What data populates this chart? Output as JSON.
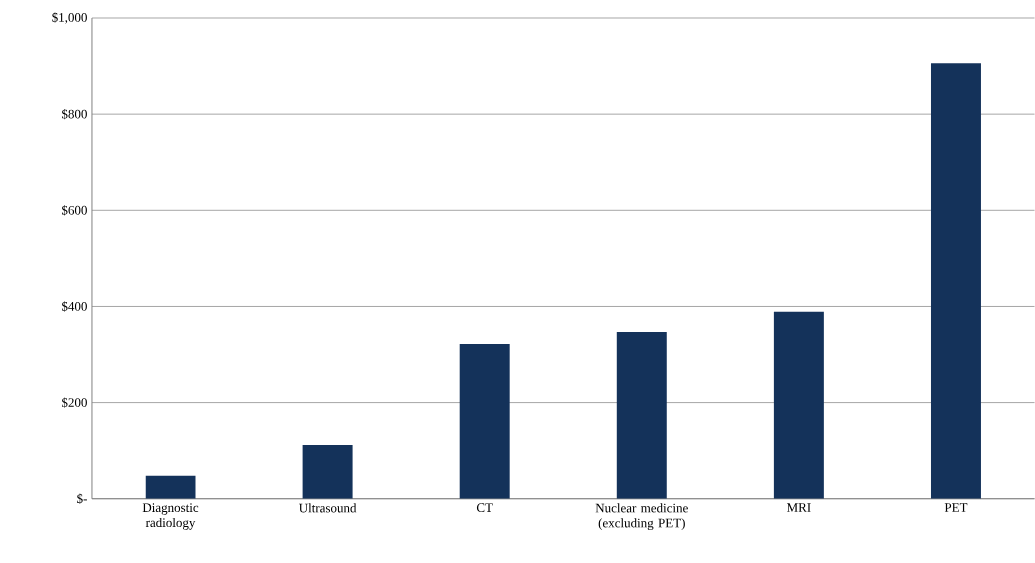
{
  "chart_data": {
    "type": "bar",
    "categories": [
      "Diagnostic radiology",
      "Ultrasound",
      "CT",
      "Nuclear medicine (excluding PET)",
      "MRI",
      "PET"
    ],
    "values": [
      48,
      112,
      322,
      347,
      389,
      906
    ],
    "color": "#14325a",
    "ylim": [
      0,
      1000
    ],
    "yticks": [
      {
        "value": 0,
        "label": "$-"
      },
      {
        "value": 200,
        "label": "$200"
      },
      {
        "value": 400,
        "label": "$400"
      },
      {
        "value": 600,
        "label": "$600"
      },
      {
        "value": 800,
        "label": "$800"
      },
      {
        "value": 1000,
        "label": "$1,000"
      }
    ],
    "grid": "y"
  }
}
